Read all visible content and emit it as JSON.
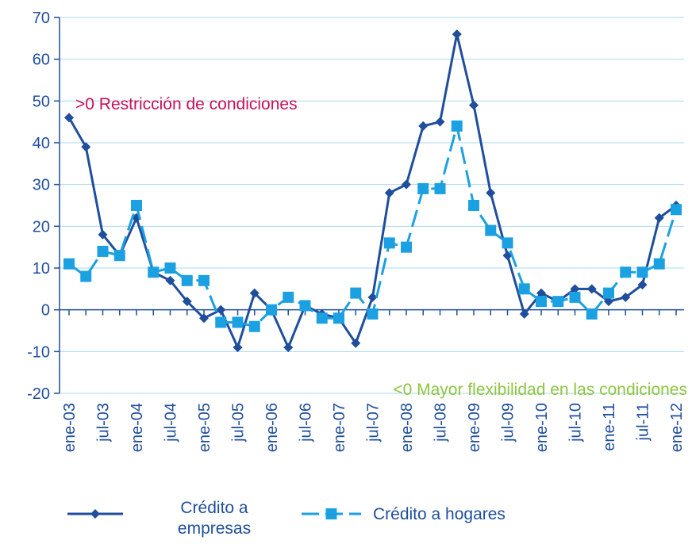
{
  "chart_data": {
    "type": "line",
    "categories": [
      "ene-03",
      null,
      "jul-03",
      null,
      "ene-04",
      null,
      "jul-04",
      null,
      "ene-05",
      null,
      "jul-05",
      null,
      "ene-06",
      null,
      "jul-06",
      null,
      "ene-07",
      null,
      "jul-07",
      null,
      "ene-08",
      null,
      "jul-08",
      null,
      "ene-09",
      null,
      "jul-09",
      null,
      "ene-10",
      null,
      "jul-10",
      null,
      "ene-11",
      null,
      "jul-11",
      null,
      "ene-12"
    ],
    "series": [
      {
        "name": "Crédito a empresas",
        "color": "#1f4e9c",
        "marker": "diamond",
        "dashed": false,
        "values": [
          46,
          39,
          18,
          13,
          22,
          9,
          7,
          2,
          -2,
          0,
          -9,
          4,
          0,
          -9,
          1,
          -1,
          -2,
          -8,
          3,
          28,
          30,
          44,
          45,
          66,
          49,
          28,
          13,
          -1,
          4,
          2,
          5,
          5,
          2,
          3,
          6,
          22,
          25
        ]
      },
      {
        "name": "Crédito a hogares",
        "color": "#1ba1e2",
        "marker": "square",
        "dashed": true,
        "values": [
          11,
          8,
          14,
          13,
          25,
          9,
          10,
          7,
          7,
          -3,
          -3,
          -4,
          0,
          3,
          1,
          -2,
          -2,
          4,
          -1,
          16,
          15,
          29,
          29,
          44,
          25,
          19,
          16,
          5,
          2,
          2,
          3,
          -1,
          4,
          9,
          9,
          11,
          24
        ]
      }
    ],
    "ylim": [
      -20,
      70
    ],
    "yticks": [
      -20,
      -10,
      0,
      10,
      20,
      30,
      40,
      50,
      60,
      70
    ],
    "grid": true,
    "annotations": [
      {
        "text": ">0 Restricción  de condiciones",
        "color": "#c8105c"
      },
      {
        "text": "<0 Mayor flexibilidad  en las condiciones",
        "color": "#8dc63f"
      }
    ]
  }
}
